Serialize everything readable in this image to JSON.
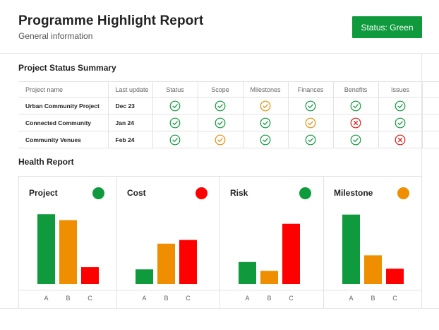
{
  "header": {
    "title": "Programme Highlight Report",
    "subtitle": "General information",
    "status_label": "Status: Green",
    "status_color": "#0f9a3d"
  },
  "summary": {
    "title": "Project Status Summary",
    "columns": [
      "Project name",
      "Last update",
      "Status",
      "Scope",
      "Milestones",
      "Finances",
      "Benefits",
      "Issues"
    ],
    "rows": [
      {
        "name": "Urban Community Project",
        "date": "Dec 23",
        "statuses": [
          "ok",
          "ok",
          "warn",
          "ok",
          "ok",
          "ok"
        ]
      },
      {
        "name": "Connected Community",
        "date": "Jan 24",
        "statuses": [
          "ok",
          "ok",
          "ok",
          "warn",
          "fail",
          "ok"
        ]
      },
      {
        "name": "Community Venues",
        "date": "Feb 24",
        "statuses": [
          "ok",
          "warn",
          "ok",
          "ok",
          "ok",
          "fail"
        ]
      }
    ],
    "status_colors": {
      "ok": "#0f9a3d",
      "warn": "#e8900c",
      "fail": "#e01818"
    },
    "icons": {
      "ok": "check-circle-icon",
      "warn": "check-circle-icon",
      "fail": "x-circle-icon"
    }
  },
  "health": {
    "title": "Health Report",
    "panels": [
      {
        "title": "Project",
        "dot_color": "#0f9a3d"
      },
      {
        "title": "Cost",
        "dot_color": "#ff0000"
      },
      {
        "title": "Risk",
        "dot_color": "#0f9a3d"
      },
      {
        "title": "Milestone",
        "dot_color": "#ef8f00"
      }
    ]
  },
  "chart_data": [
    {
      "type": "bar",
      "title": "Project",
      "categories": [
        "A",
        "B",
        "C"
      ],
      "values": [
        95,
        87,
        23
      ],
      "colors": [
        "#0f9a3d",
        "#ef8f00",
        "#ff0000"
      ],
      "ylim": [
        0,
        100
      ],
      "grid": false
    },
    {
      "type": "bar",
      "title": "Cost",
      "categories": [
        "A",
        "B",
        "C"
      ],
      "values": [
        20,
        55,
        60
      ],
      "colors": [
        "#0f9a3d",
        "#ef8f00",
        "#ff0000"
      ],
      "ylim": [
        0,
        100
      ],
      "grid": false
    },
    {
      "type": "bar",
      "title": "Risk",
      "categories": [
        "A",
        "B",
        "C"
      ],
      "values": [
        30,
        18,
        82
      ],
      "colors": [
        "#0f9a3d",
        "#ef8f00",
        "#ff0000"
      ],
      "ylim": [
        0,
        100
      ],
      "grid": false
    },
    {
      "type": "bar",
      "title": "Milestone",
      "categories": [
        "A",
        "B",
        "C"
      ],
      "values": [
        104,
        43,
        23
      ],
      "colors": [
        "#0f9a3d",
        "#ef8f00",
        "#ff0000"
      ],
      "ylim": [
        0,
        110
      ],
      "grid": false
    }
  ]
}
